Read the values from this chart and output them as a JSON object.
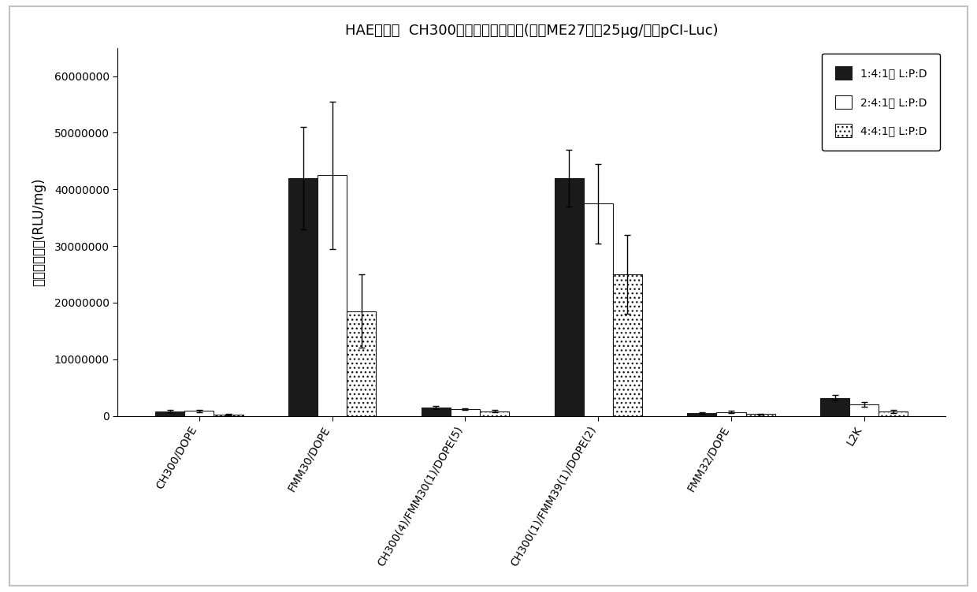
{
  "title": "HAE细胞：  CH300脂质的变化的对比(与肽ME27以及25μg/孔的pCI-Luc)",
  "ylabel": "荆光素酶活性(RLU/mg)",
  "categories": [
    "CH300/DOPE",
    "FMM30/DOPE",
    "CH300(4)/FMM30(1)/DOPE(5)",
    "CH300(1)/FMM39(1)/DOPE(2)",
    "FMM32/DOPE",
    "L2K"
  ],
  "series": [
    {
      "label": "1:4:1的 L:P:D",
      "values": [
        800000,
        42000000,
        1500000,
        42000000,
        500000,
        3200000
      ],
      "errors": [
        200000,
        9000000,
        300000,
        5000000,
        200000,
        500000
      ],
      "color": "#1a1a1a",
      "hatch": null
    },
    {
      "label": "2:4:1的 L:P:D",
      "values": [
        900000,
        42500000,
        1200000,
        37500000,
        700000,
        2000000
      ],
      "errors": [
        200000,
        13000000,
        200000,
        7000000,
        200000,
        400000
      ],
      "color": "#ffffff",
      "hatch": null
    },
    {
      "label": "4:4:1的 L:P:D",
      "values": [
        200000,
        18500000,
        800000,
        25000000,
        300000,
        800000
      ],
      "errors": [
        100000,
        6500000,
        200000,
        7000000,
        100000,
        300000
      ],
      "color": "#ffffff",
      "hatch": "..."
    }
  ],
  "ylim": [
    0,
    65000000
  ],
  "yticks": [
    0,
    10000000,
    20000000,
    30000000,
    40000000,
    50000000,
    60000000
  ],
  "bar_width": 0.22,
  "background_color": "#ffffff",
  "outer_border_color": "#c0c0c0",
  "legend_fontsize": 10,
  "title_fontsize": 13,
  "ylabel_fontsize": 12,
  "tick_fontsize": 10
}
